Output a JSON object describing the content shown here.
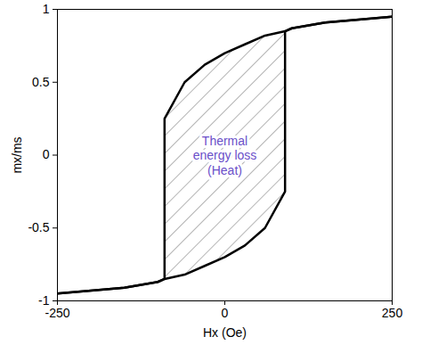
{
  "chart_data": {
    "type": "line",
    "xlabel": "Hx (Oe)",
    "ylabel": "mx/ms",
    "x": [
      -250,
      -200,
      -150,
      -100,
      -90,
      -90,
      -60,
      -30,
      0,
      30,
      60,
      90,
      90,
      100,
      150,
      200,
      250
    ],
    "series": [
      {
        "color": "#000000",
        "values": [
          -0.95,
          -0.93,
          -0.91,
          -0.87,
          -0.85,
          0.25,
          0.5,
          0.62,
          0.7,
          0.76,
          0.82,
          0.85,
          0.85,
          0.87,
          0.91,
          0.93,
          0.95
        ]
      },
      {
        "color": "#000000",
        "values": [
          -0.95,
          -0.93,
          -0.91,
          -0.87,
          -0.85,
          -0.85,
          -0.82,
          -0.76,
          -0.7,
          -0.62,
          -0.5,
          -0.25,
          0.85,
          0.87,
          0.91,
          0.93,
          0.95
        ]
      }
    ],
    "annotations": [
      {
        "text": "Thermal\nenergy loss\n(Heat)",
        "x": 0,
        "y": 0,
        "color": "#6a4fc9"
      }
    ],
    "xlim": [
      -250,
      250
    ],
    "xticks": [
      -250,
      0,
      250
    ],
    "ylim": [
      -1,
      1
    ],
    "yticks": [
      -1,
      -0.5,
      0,
      0.5,
      1
    ],
    "grid": false
  }
}
